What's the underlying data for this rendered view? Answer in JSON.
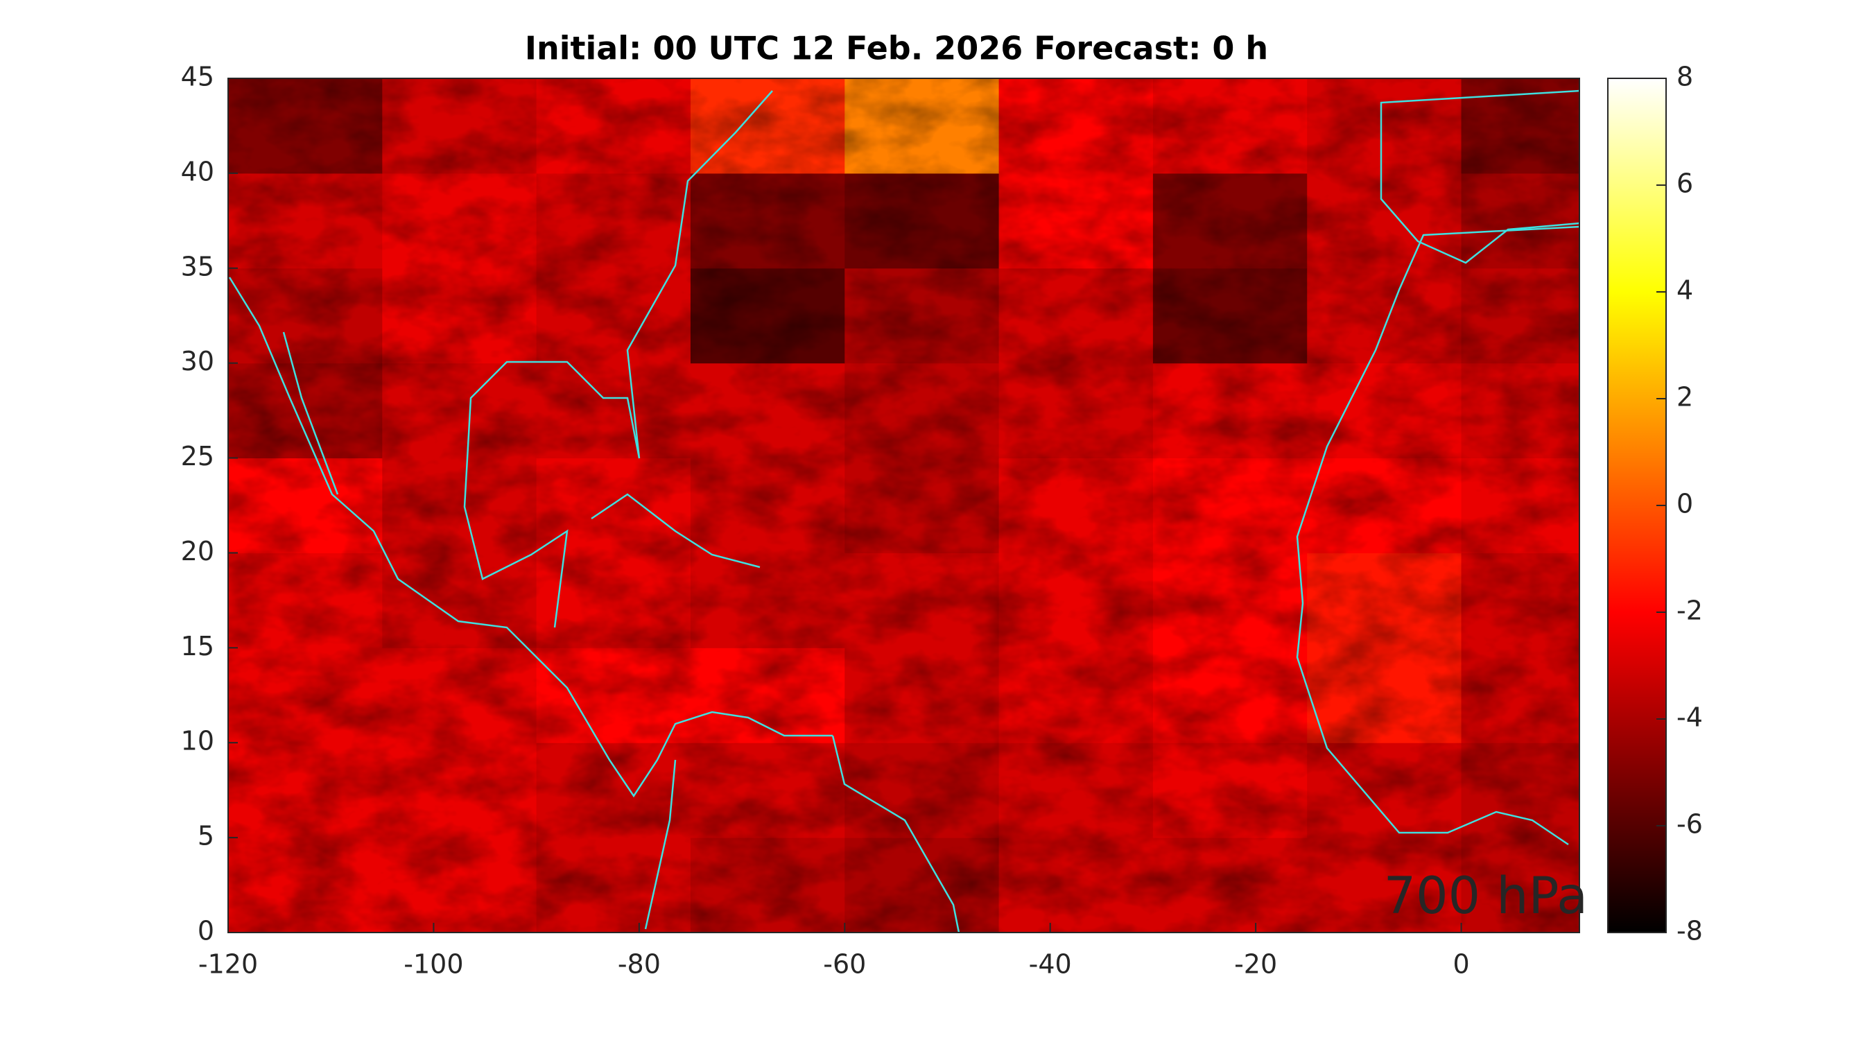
{
  "chart_data": {
    "type": "heatmap",
    "title": "Initial: 00 UTC 12 Feb. 2026 Forecast: 0 h",
    "annotation": "700 hPa",
    "annotation_color": "#00ff00",
    "colormap": "hot",
    "coastline_color": "#40e0e0",
    "x_edges": [
      -120,
      -105,
      -90,
      -75,
      -60,
      -45,
      -30,
      -15,
      0,
      11.5
    ],
    "y_edges": [
      0,
      5,
      10,
      15,
      20,
      25,
      30,
      35,
      40,
      45
    ],
    "values": [
      [
        -2.5,
        -2.5,
        -3,
        -3.5,
        -4,
        -3,
        -3,
        -3,
        -3.5
      ],
      [
        -2.5,
        -2.5,
        -3,
        -3,
        -3.5,
        -3,
        -2.5,
        -3,
        -3.5
      ],
      [
        -2.5,
        -2.5,
        -2,
        -2,
        -3,
        -2.5,
        -2,
        -1.5,
        -3
      ],
      [
        -2.5,
        -3,
        -2.5,
        -3,
        -3,
        -2.5,
        -2,
        -1.5,
        -3
      ],
      [
        -2,
        -3,
        -2.5,
        -3,
        -3.5,
        -2.5,
        -2,
        -2,
        -2.5
      ],
      [
        -4,
        -3,
        -3,
        -3,
        -3.5,
        -3,
        -2.5,
        -2.5,
        -3
      ],
      [
        -3.5,
        -2.5,
        -3,
        -6,
        -4,
        -3,
        -5.5,
        -3,
        -3.5
      ],
      [
        -3,
        -2.5,
        -3,
        -5,
        -5.5,
        -2,
        -5,
        -3,
        -4
      ],
      [
        -5,
        -3,
        -2.5,
        -1,
        1,
        -2,
        -2.5,
        -3,
        -5
      ]
    ],
    "xlim": [
      -120,
      11.5
    ],
    "xticks": [
      -120,
      -100,
      -80,
      -60,
      -40,
      -20,
      0
    ],
    "ylim": [
      0,
      45
    ],
    "yticks": [
      0,
      5,
      10,
      15,
      20,
      25,
      30,
      35,
      40,
      45
    ],
    "clim": [
      -8,
      8
    ],
    "cticks": [
      -8,
      -6,
      -4,
      -2,
      0,
      2,
      4,
      6,
      8
    ]
  }
}
